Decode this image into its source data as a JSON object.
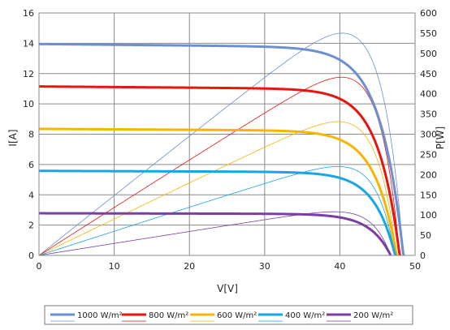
{
  "chart_data": {
    "type": "line",
    "xlabel": "V[V]",
    "ylabel_left": "I[A]",
    "ylabel_right": "P[W]",
    "xlim": [
      0,
      50
    ],
    "ylim_left": [
      0,
      16
    ],
    "ylim_right": [
      0,
      600
    ],
    "x_ticks": [
      "0",
      "10",
      "20",
      "30",
      "40",
      "50"
    ],
    "y_left_ticks": [
      "0",
      "2",
      "4",
      "6",
      "8",
      "10",
      "12",
      "14",
      "16"
    ],
    "y_right_ticks": [
      "0",
      "50",
      "100",
      "150",
      "200",
      "250",
      "300",
      "350",
      "400",
      "450",
      "500",
      "550",
      "600"
    ],
    "grid": true,
    "legend_position": "bottom",
    "series": [
      {
        "name": "1000 W/m²",
        "color": "#6b8fd0",
        "current": {
          "isc": 13.95,
          "voc": 48.5,
          "knee": 41.5
        },
        "power": {
          "pmax": 550,
          "vmp": 41.8
        }
      },
      {
        "name": "800 W/m²",
        "color": "#e8140f",
        "current": {
          "isc": 11.15,
          "voc": 48.0,
          "knee": 41.5
        },
        "power": {
          "pmax": 441,
          "vmp": 41.8
        }
      },
      {
        "name": "600 W/m²",
        "color": "#f7b500",
        "current": {
          "isc": 8.35,
          "voc": 47.6,
          "knee": 41.0
        },
        "power": {
          "pmax": 331,
          "vmp": 41.5
        }
      },
      {
        "name": "400 W/m²",
        "color": "#16a6e3",
        "current": {
          "isc": 5.58,
          "voc": 47.4,
          "knee": 41.0
        },
        "power": {
          "pmax": 220,
          "vmp": 41.5
        }
      },
      {
        "name": "200 W/m²",
        "color": "#7a3ea6",
        "current": {
          "isc": 2.78,
          "voc": 46.8,
          "knee": 40.5
        },
        "power": {
          "pmax": 108,
          "vmp": 41.0
        }
      }
    ]
  }
}
